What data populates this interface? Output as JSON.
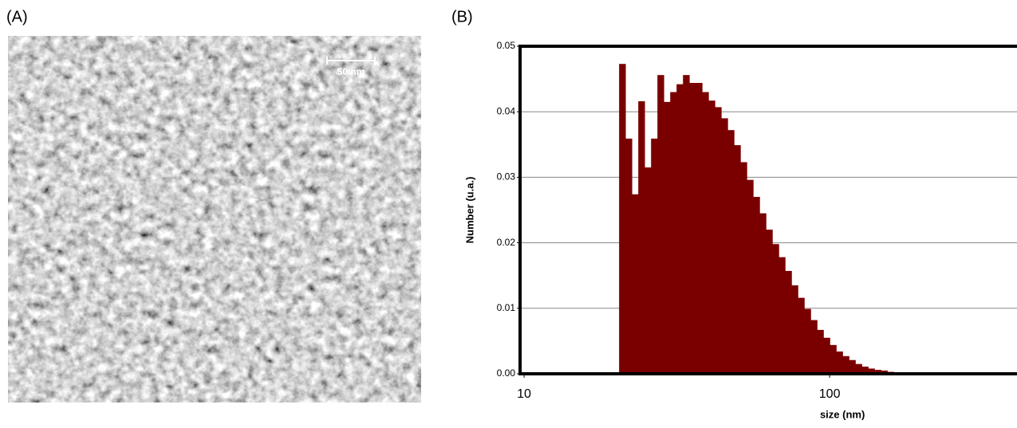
{
  "panel_labels": [
    "(A)",
    "(B)"
  ],
  "scale_bar_label": "50 nm",
  "chart_data": {
    "type": "histogram",
    "xlabel": "size (nm)",
    "ylabel": "Number (u.a.)",
    "xscale": "log",
    "color": "#7a0000",
    "grid": true,
    "bins": [
      20.46,
      21.47,
      22.53,
      23.64,
      24.8,
      26.03,
      27.31,
      28.66,
      30.07,
      31.55,
      33.11,
      34.74,
      36.45,
      38.25,
      40.14,
      42.12,
      44.19,
      46.37,
      48.66,
      51.06,
      53.57,
      56.21,
      58.99,
      61.9,
      64.95,
      68.15,
      71.51,
      75.04,
      78.74,
      82.62,
      86.69,
      90.97,
      95.45,
      100.16,
      105.1,
      110.28,
      115.72,
      121.42,
      127.41,
      133.69,
      140.28,
      147.2,
      154.46,
      162.07,
      170.06
    ],
    "values": [
      0.0473,
      0.0359,
      0.0274,
      0.0416,
      0.0315,
      0.0359,
      0.0456,
      0.0415,
      0.043,
      0.0442,
      0.0456,
      0.0444,
      0.0444,
      0.043,
      0.0417,
      0.0407,
      0.039,
      0.0372,
      0.0349,
      0.0323,
      0.0296,
      0.027,
      0.0245,
      0.022,
      0.0198,
      0.0178,
      0.0157,
      0.0135,
      0.0116,
      0.0099,
      0.0082,
      0.0067,
      0.0055,
      0.0044,
      0.0034,
      0.0027,
      0.0021,
      0.0015,
      0.0011,
      0.0008,
      0.0006,
      0.0005,
      0.0003,
      0.0002
    ],
    "xlim": [
      9.7,
      403
    ],
    "xticks": [
      10,
      100
    ],
    "ylim": [
      0,
      0.05
    ],
    "yticks": [
      {
        "value": 0,
        "label": "0.00"
      },
      0.01,
      0.02,
      0.03,
      0.04,
      0.05
    ]
  }
}
